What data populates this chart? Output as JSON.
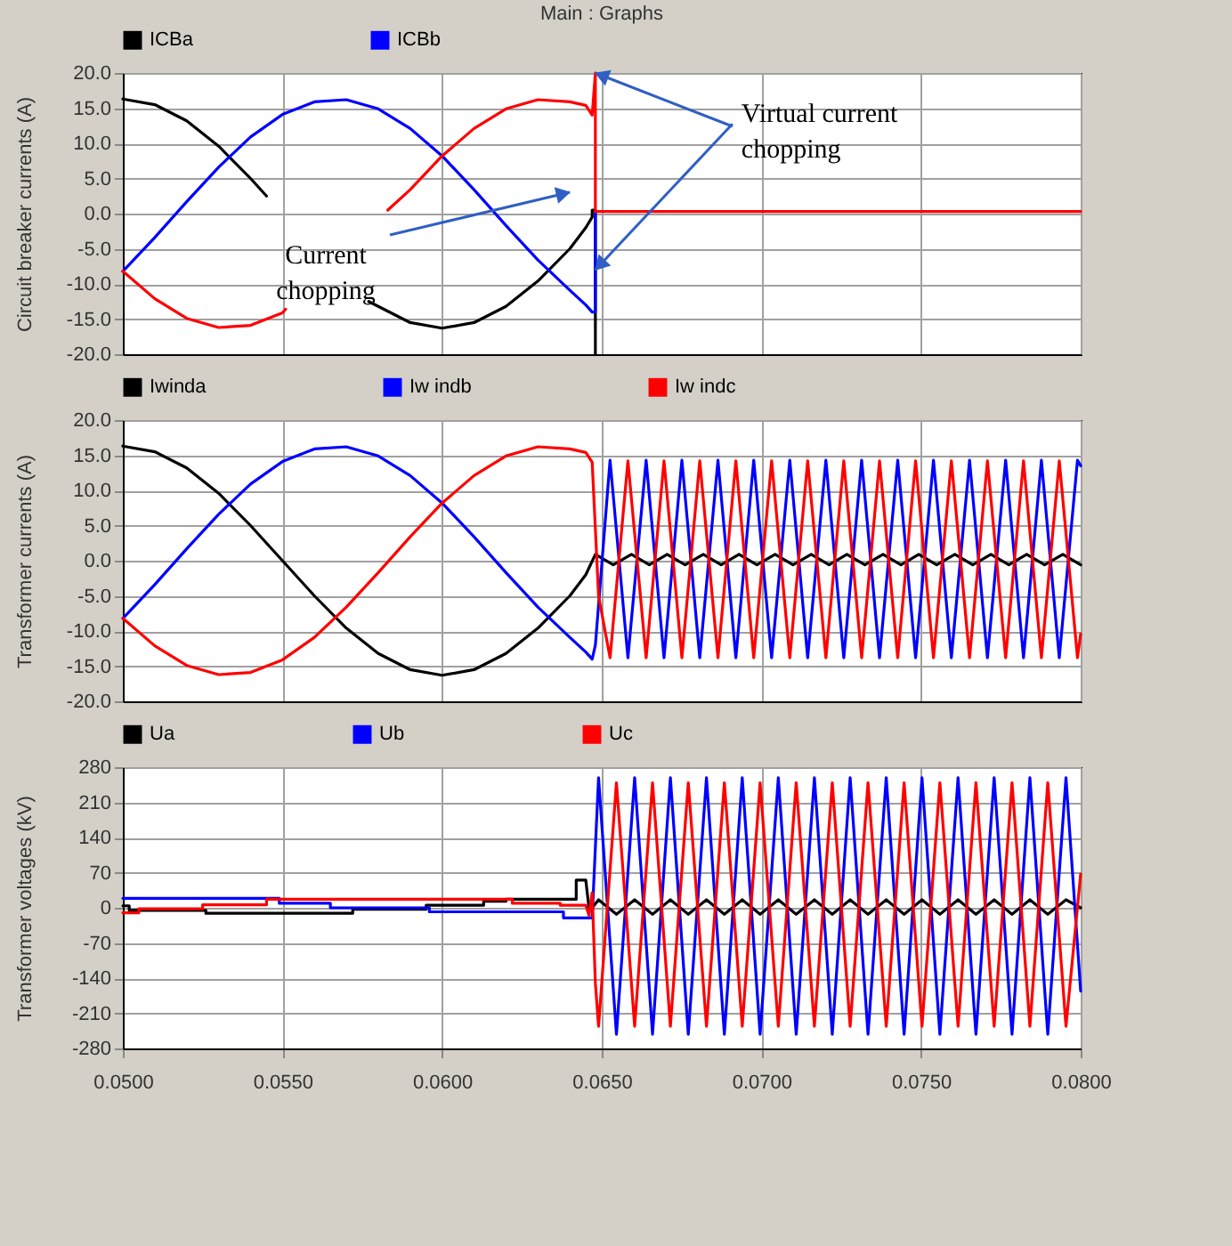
{
  "chart_data": [
    {
      "type": "line",
      "title": "Main : Graphs",
      "ylabel": "Circuit breaker currents (A)",
      "xlim": [
        0.05,
        0.08
      ],
      "xticks": [
        0.05,
        0.055,
        0.06,
        0.065,
        0.07,
        0.075,
        0.08
      ],
      "ylim": [
        -20,
        20
      ],
      "yticks": [
        {
          "value": -20,
          "label": "-20.0"
        },
        {
          "value": -15,
          "label": "-15.0"
        },
        {
          "value": -10,
          "label": "-10.0"
        },
        {
          "value": -5,
          "label": "-5.0"
        },
        {
          "value": 0,
          "label": "0.0"
        },
        {
          "value": 5,
          "label": "5.0"
        },
        {
          "value": 10,
          "label": "10.0"
        },
        {
          "value": 15,
          "label": "15.0"
        },
        {
          "value": 20,
          "label": "20.0"
        }
      ],
      "grid": true,
      "legend": "top",
      "tick_labels": "y",
      "annotations": [
        "Current chopping",
        {
          "text": "Virtual current chopping",
          "x": 0.0648,
          "y": -8
        }
      ],
      "series": [
        {
          "name": "ICBa",
          "color": "#000000",
          "x": [
            0.05,
            0.051,
            0.052,
            0.053,
            0.054,
            0.0545,
            0.056,
            0.0577,
            0.058,
            0.059,
            0.06,
            0.061,
            0.062,
            0.063,
            0.064,
            0.0645,
            0.0647,
            0.0647,
            0.0648,
            0.0648
          ],
          "values": [
            16.3,
            15.5,
            13.2,
            9.6,
            5.0,
            2.5,
            null,
            -12.5,
            -13.2,
            -15.5,
            -16.3,
            -15.5,
            -13.2,
            -9.6,
            -5.0,
            -2.0,
            -0.5,
            0.5,
            0.5,
            -20
          ]
        },
        {
          "name": "ICBb",
          "color": "#0000ff",
          "x": [
            0.05,
            0.051,
            0.052,
            0.053,
            0.054,
            0.055,
            0.056,
            0.057,
            0.058,
            0.059,
            0.06,
            0.061,
            0.062,
            0.063,
            0.064,
            0.0645,
            0.0647,
            0.0648,
            0.0648
          ],
          "values": [
            -8.2,
            -3.4,
            1.7,
            6.6,
            10.9,
            14.1,
            15.9,
            16.2,
            14.9,
            12.1,
            8.2,
            3.4,
            -1.7,
            -6.6,
            -10.9,
            -13,
            -14,
            -14,
            0.3
          ]
        },
        {
          "color": "#ff0000",
          "x": [
            0.05,
            0.051,
            0.052,
            0.053,
            0.054,
            0.055,
            0.0551,
            0.056,
            0.0583,
            0.059,
            0.06,
            0.061,
            0.062,
            0.063,
            0.064,
            0.0645,
            0.0647,
            0.0648,
            0.0648,
            0.08
          ],
          "values": [
            -8.2,
            -12.1,
            -14.9,
            -16.2,
            -15.9,
            -14.1,
            -13.6,
            null,
            0.5,
            3.4,
            8.2,
            12.1,
            14.9,
            16.2,
            15.9,
            15.4,
            14,
            20,
            0.3,
            0.3
          ]
        }
      ]
    },
    {
      "type": "line",
      "ylabel": "Transformer currents  (A)",
      "xlim": [
        0.05,
        0.08
      ],
      "xticks": [
        0.05,
        0.055,
        0.06,
        0.065,
        0.07,
        0.075,
        0.08
      ],
      "ylim": [
        -20,
        20
      ],
      "yticks": [
        {
          "value": -20,
          "label": "-20.0"
        },
        {
          "value": -15,
          "label": "-15.0"
        },
        {
          "value": -10,
          "label": "-10.0"
        },
        {
          "value": -5,
          "label": "-5.0"
        },
        {
          "value": 0,
          "label": "0.0"
        },
        {
          "value": 5,
          "label": "5.0"
        },
        {
          "value": 10,
          "label": "10.0"
        },
        {
          "value": 15,
          "label": "15.0"
        },
        {
          "value": 20,
          "label": "20.0"
        }
      ],
      "grid": true,
      "legend": "top",
      "tick_labels": "y",
      "series": [
        {
          "name": "Iwinda",
          "color": "#000000",
          "x": [
            0.05,
            0.051,
            0.052,
            0.053,
            0.054,
            0.055,
            0.056,
            0.057,
            0.058,
            0.059,
            0.06,
            0.061,
            0.062,
            0.063,
            0.064,
            0.0645,
            0.0648,
            0.06536,
            0.06593,
            0.06649,
            0.06705,
            0.06761,
            0.06818,
            0.06874,
            0.0693,
            0.06986,
            0.07043,
            0.07099,
            0.07156,
            0.07212,
            0.07268,
            0.07324,
            0.07381,
            0.07437,
            0.07493,
            0.07549,
            0.07606,
            0.07662,
            0.07719,
            0.07775,
            0.07831,
            0.07887,
            0.07944,
            0.08
          ],
          "values": [
            16.3,
            15.5,
            13.2,
            9.6,
            5.0,
            0,
            -5.0,
            -9.6,
            -13.2,
            -15.5,
            -16.3,
            -15.5,
            -13.2,
            -9.6,
            -5.0,
            -2.0,
            0.9,
            -0.6,
            0.9,
            -0.6,
            0.9,
            -0.6,
            0.9,
            -0.6,
            0.9,
            -0.6,
            0.9,
            -0.6,
            0.9,
            -0.6,
            0.9,
            -0.6,
            0.9,
            -0.6,
            0.9,
            -0.6,
            0.9,
            -0.6,
            0.9,
            -0.6,
            0.9,
            -0.6,
            0.9,
            -0.6
          ]
        },
        {
          "name": "Iw indb",
          "color": "#0000ff",
          "x": [
            0.05,
            0.051,
            0.052,
            0.053,
            0.054,
            0.055,
            0.056,
            0.057,
            0.058,
            0.059,
            0.06,
            0.061,
            0.062,
            0.063,
            0.064,
            0.0645,
            0.0647,
            0.0648,
            0.06526,
            0.06582,
            0.06639,
            0.06695,
            0.06751,
            0.06807,
            0.06864,
            0.0692,
            0.06976,
            0.07032,
            0.07089,
            0.07145,
            0.07202,
            0.07258,
            0.07314,
            0.0737,
            0.07427,
            0.07483,
            0.07539,
            0.07595,
            0.07652,
            0.07708,
            0.07765,
            0.07821,
            0.07877,
            0.07933,
            0.0799,
            0.08
          ],
          "values": [
            -8.2,
            -3.4,
            1.7,
            6.6,
            10.9,
            14.1,
            15.9,
            16.2,
            14.9,
            12.1,
            8.2,
            3.4,
            -1.7,
            -6.6,
            -10.9,
            -13,
            -14,
            -12,
            14.3,
            -13.8,
            14.3,
            -13.8,
            14.3,
            -13.8,
            14.3,
            -13.8,
            14.3,
            -13.8,
            14.3,
            -13.8,
            14.3,
            -13.8,
            14.3,
            -13.8,
            14.3,
            -13.8,
            14.3,
            -13.8,
            14.3,
            -13.8,
            14.3,
            -13.8,
            14.3,
            -13.8,
            14.3,
            13.5
          ]
        },
        {
          "name": "Iw indc",
          "color": "#ff0000",
          "x": [
            0.05,
            0.051,
            0.052,
            0.053,
            0.054,
            0.055,
            0.056,
            0.057,
            0.058,
            0.059,
            0.06,
            0.061,
            0.062,
            0.063,
            0.064,
            0.0645,
            0.0647,
            0.0649,
            0.06526,
            0.06582,
            0.06639,
            0.06695,
            0.06751,
            0.06807,
            0.06864,
            0.0692,
            0.06976,
            0.07032,
            0.07089,
            0.07145,
            0.07202,
            0.07258,
            0.07314,
            0.0737,
            0.07427,
            0.07483,
            0.07539,
            0.07595,
            0.07652,
            0.07708,
            0.07765,
            0.07821,
            0.07877,
            0.07933,
            0.0799,
            0.08
          ],
          "values": [
            -8.2,
            -12.1,
            -14.9,
            -16.2,
            -15.9,
            -14.1,
            -10.9,
            -6.6,
            -1.7,
            3.4,
            8.2,
            12.1,
            14.9,
            16.2,
            15.9,
            15.4,
            14,
            -5,
            -13.8,
            14.2,
            -13.8,
            14.2,
            -13.8,
            14.2,
            -13.8,
            14.2,
            -13.8,
            14.2,
            -13.8,
            14.2,
            -13.8,
            14.2,
            -13.8,
            14.2,
            -13.8,
            14.2,
            -13.8,
            14.2,
            -13.8,
            14.2,
            -13.8,
            14.2,
            -13.8,
            14.2,
            -13.8,
            -10.4
          ]
        }
      ]
    },
    {
      "type": "line",
      "ylabel": "Transformer voltages (kV)",
      "xlim": [
        0.05,
        0.08
      ],
      "xticks": [
        {
          "value": 0.05,
          "label": "0.0500"
        },
        {
          "value": 0.055,
          "label": "0.0550"
        },
        {
          "value": 0.06,
          "label": "0.0600"
        },
        {
          "value": 0.065,
          "label": "0.0650"
        },
        {
          "value": 0.07,
          "label": "0.0700"
        },
        {
          "value": 0.075,
          "label": "0.0750"
        },
        {
          "value": 0.08,
          "label": "0.0800"
        }
      ],
      "ylim": [
        -280,
        280
      ],
      "yticks": [
        -280,
        -210,
        -140,
        -70,
        0,
        70,
        140,
        210,
        280
      ],
      "grid": true,
      "legend": "top",
      "series": [
        {
          "name": "Ua",
          "color": "#000000",
          "x": [
            0.05,
            0.0502,
            0.0502,
            0.0526,
            0.0526,
            0.0572,
            0.0572,
            0.0595,
            0.0595,
            0.0613,
            0.0613,
            0.062,
            0.062,
            0.0642,
            0.0642,
            0.0645,
            0.0646,
            0.0647,
            0.0649,
            0.06546,
            0.06603,
            0.06659,
            0.06715,
            0.06771,
            0.06828,
            0.06884,
            0.0694,
            0.06996,
            0.07053,
            0.07109,
            0.07166,
            0.07222,
            0.07278,
            0.07334,
            0.07391,
            0.07447,
            0.07503,
            0.07559,
            0.07616,
            0.07672,
            0.07729,
            0.07785,
            0.07841,
            0.07897,
            0.07954,
            0.08
          ],
          "values": [
            4,
            4,
            -5,
            -5,
            -11,
            -11,
            -3,
            -3,
            5,
            5,
            13,
            13,
            17,
            17,
            55,
            55,
            0,
            0,
            16,
            -13,
            16,
            -13,
            16,
            -13,
            16,
            -13,
            16,
            -13,
            16,
            -13,
            16,
            -13,
            16,
            -13,
            16,
            -13,
            16,
            -13,
            16,
            -13,
            16,
            -13,
            16,
            -13,
            16,
            0
          ]
        },
        {
          "name": "Ub",
          "color": "#0000ff",
          "x": [
            0.05,
            0.0549,
            0.0549,
            0.0565,
            0.0565,
            0.0596,
            0.0596,
            0.0638,
            0.0638,
            0.0647,
            0.0648,
            0.0649,
            0.06546,
            0.06603,
            0.06659,
            0.06715,
            0.06771,
            0.06828,
            0.06884,
            0.0694,
            0.06996,
            0.07053,
            0.07109,
            0.07166,
            0.07222,
            0.07278,
            0.07334,
            0.07391,
            0.07447,
            0.07503,
            0.07559,
            0.07616,
            0.07672,
            0.07729,
            0.07785,
            0.07841,
            0.07897,
            0.07954,
            0.08
          ],
          "values": [
            19,
            19,
            9,
            9,
            0,
            0,
            -8,
            -8,
            -20,
            -20,
            120,
            259,
            -252,
            259,
            -252,
            259,
            -252,
            259,
            -252,
            259,
            -252,
            259,
            -252,
            259,
            -252,
            259,
            -252,
            259,
            -252,
            259,
            -252,
            259,
            -252,
            259,
            -252,
            259,
            -252,
            259,
            -166
          ]
        },
        {
          "name": "Uc",
          "color": "#ff0000",
          "x": [
            0.05,
            0.0505,
            0.0505,
            0.0525,
            0.0525,
            0.0545,
            0.0545,
            0.0622,
            0.0622,
            0.0637,
            0.0637,
            0.0645,
            0.0646,
            0.0647,
            0.0648,
            0.0649,
            0.06546,
            0.06603,
            0.06659,
            0.06715,
            0.06771,
            0.06828,
            0.06884,
            0.0694,
            0.06996,
            0.07053,
            0.07109,
            0.07166,
            0.07222,
            0.07278,
            0.07334,
            0.07391,
            0.07447,
            0.07503,
            0.07559,
            0.07616,
            0.07672,
            0.07729,
            0.07785,
            0.07841,
            0.07897,
            0.07954,
            0.08
          ],
          "values": [
            -10,
            -10,
            -2,
            -2,
            6,
            6,
            17,
            17,
            9,
            9,
            5,
            5,
            -15,
            30,
            -150,
            -236,
            249,
            -236,
            249,
            -236,
            249,
            -236,
            249,
            -236,
            249,
            -236,
            249,
            -236,
            249,
            -236,
            249,
            -236,
            249,
            -236,
            249,
            -236,
            249,
            -236,
            249,
            -236,
            249,
            -236,
            67
          ]
        }
      ]
    }
  ]
}
